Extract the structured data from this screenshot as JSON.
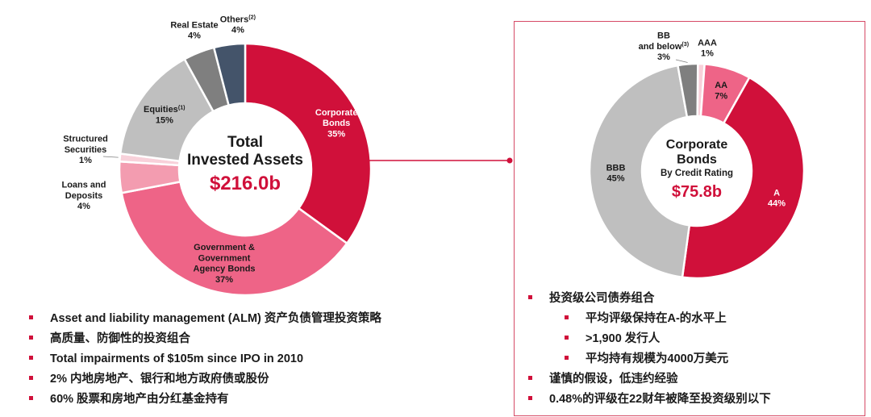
{
  "colors": {
    "accent": "#d0103a",
    "pink": "#ee6487",
    "light_pink": "#f39cb0",
    "grey": "#bfbfbf",
    "dark_grey": "#7f7f7f",
    "slate": "#44546a"
  },
  "chart_data": [
    {
      "type": "pie",
      "variant": "donut",
      "center_title": "Total\nInvested Assets",
      "center_value": "$216.0b",
      "series": [
        {
          "name": "Corporate Bonds",
          "label": "Corporate\nBonds",
          "value": 35,
          "pct_label": "35%",
          "color": "#d0103a",
          "label_inside": true,
          "label_color": "#ffffff"
        },
        {
          "name": "Government & Government Agency Bonds",
          "label": "Government &\nGovernment\nAgency Bonds",
          "value": 37,
          "pct_label": "37%",
          "color": "#ee6487",
          "label_inside": true,
          "label_color": "#1a1a1a"
        },
        {
          "name": "Loans and Deposits",
          "label": "Loans and\nDeposits",
          "value": 4,
          "pct_label": "4%",
          "color": "#f39cb0",
          "label_inside": false,
          "label_color": "#1a1a1a"
        },
        {
          "name": "Structured Securities",
          "label": "Structured\nSecurities",
          "value": 1,
          "pct_label": "1%",
          "color": "#f8d1da",
          "label_inside": false,
          "label_color": "#1a1a1a"
        },
        {
          "name": "Equities",
          "label": "Equities",
          "sup": "(1)",
          "value": 15,
          "pct_label": "15%",
          "color": "#bfbfbf",
          "label_inside": true,
          "label_color": "#1a1a1a"
        },
        {
          "name": "Real Estate",
          "label": "Real Estate",
          "value": 4,
          "pct_label": "4%",
          "color": "#7f7f7f",
          "label_inside": false,
          "label_color": "#1a1a1a"
        },
        {
          "name": "Others",
          "label": "Others",
          "sup": "(2)",
          "value": 4,
          "pct_label": "4%",
          "color": "#44546a",
          "label_inside": false,
          "label_color": "#1a1a1a"
        }
      ]
    },
    {
      "type": "pie",
      "variant": "donut",
      "center_title": "Corporate\nBonds",
      "center_subtitle": "By Credit Rating",
      "center_value": "$75.8b",
      "series": [
        {
          "name": "AAA",
          "label": "AAA",
          "value": 1,
          "pct_label": "1%",
          "color": "#f8d1da",
          "label_inside": false,
          "label_color": "#1a1a1a"
        },
        {
          "name": "AA",
          "label": "AA",
          "value": 7,
          "pct_label": "7%",
          "color": "#ee6487",
          "label_inside": true,
          "label_color": "#1a1a1a"
        },
        {
          "name": "A",
          "label": "A",
          "value": 44,
          "pct_label": "44%",
          "color": "#d0103a",
          "label_inside": true,
          "label_color": "#ffffff"
        },
        {
          "name": "BBB",
          "label": "BBB",
          "value": 45,
          "pct_label": "45%",
          "color": "#bfbfbf",
          "label_inside": true,
          "label_color": "#1a1a1a"
        },
        {
          "name": "BB and below",
          "label": "BB\nand below",
          "sup": "(3)",
          "value": 3,
          "pct_label": "3%",
          "color": "#7f7f7f",
          "label_inside": false,
          "label_color": "#1a1a1a"
        }
      ]
    }
  ],
  "left_bullets": [
    "Asset and liability management (ALM) 资产负债管理投资策略",
    "高质量、防御性的投资组合",
    "Total impairments of $105m since IPO in 2010",
    "2% 内地房地产、银行和地方政府债或股份",
    "60% 股票和房地产由分红基金持有"
  ],
  "right_bullets": [
    {
      "text": "投资级公司债券组合",
      "sub": false
    },
    {
      "text": "平均评级保持在A-的水平上",
      "sub": true
    },
    {
      "text": ">1,900 发行人",
      "sub": true
    },
    {
      "text": "平均持有规模为4000万美元",
      "sub": true
    },
    {
      "text": "谨慎的假设，低违约经验",
      "sub": false
    },
    {
      "text": "0.48%的评级在22财年被降至投资级别以下",
      "sub": false
    }
  ]
}
